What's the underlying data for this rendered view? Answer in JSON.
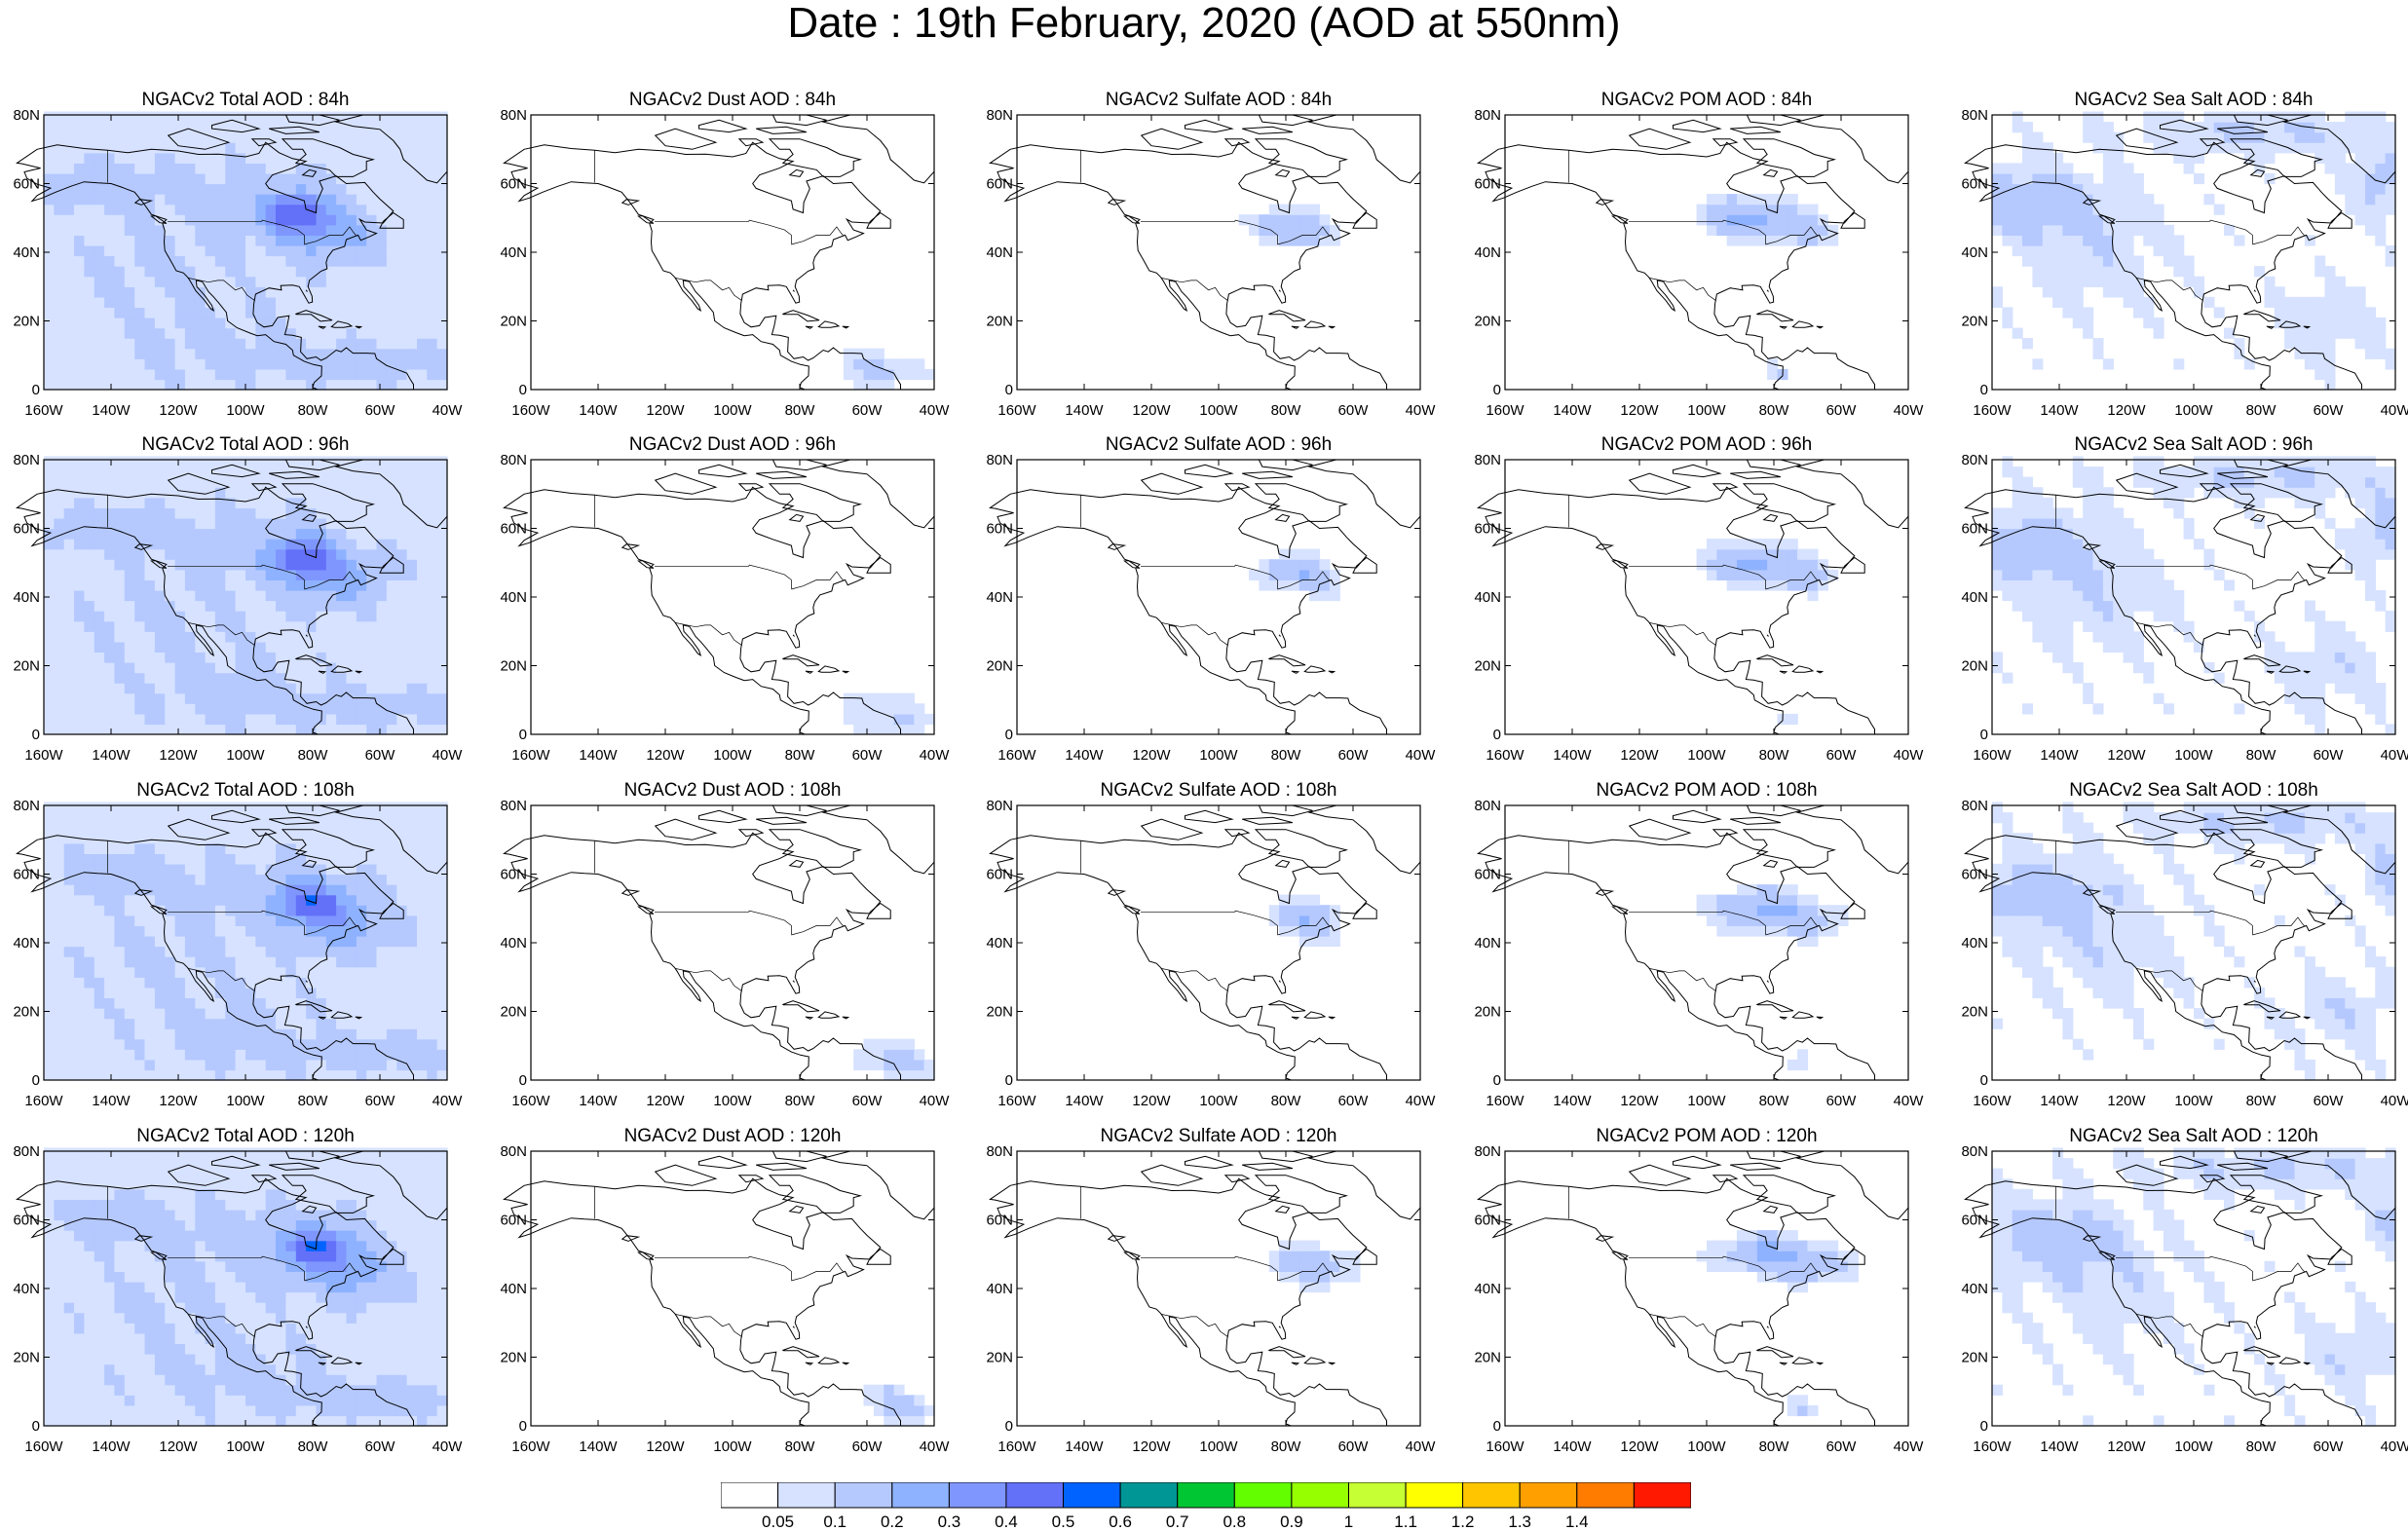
{
  "title": "Date : 19th February, 2020 (AOD at 550nm)",
  "rows": [
    {
      "panels": [
        {
          "title": "NGACv2 Total AOD : 84h",
          "species": "total"
        },
        {
          "title": "NGACv2 Dust AOD : 84h",
          "species": "dust"
        },
        {
          "title": "NGACv2 Sulfate AOD : 84h",
          "species": "sulfate"
        },
        {
          "title": "NGACv2 POM AOD : 84h",
          "species": "pom"
        },
        {
          "title": "NGACv2 Sea Salt AOD : 84h",
          "species": "seasalt"
        }
      ]
    },
    {
      "panels": [
        {
          "title": "NGACv2 Total AOD : 96h",
          "species": "total"
        },
        {
          "title": "NGACv2 Dust AOD : 96h",
          "species": "dust"
        },
        {
          "title": "NGACv2 Sulfate AOD : 96h",
          "species": "sulfate"
        },
        {
          "title": "NGACv2 POM AOD : 96h",
          "species": "pom"
        },
        {
          "title": "NGACv2 Sea Salt AOD : 96h",
          "species": "seasalt"
        }
      ]
    },
    {
      "panels": [
        {
          "title": "NGACv2 Total AOD : 108h",
          "species": "total"
        },
        {
          "title": "NGACv2 Dust AOD : 108h",
          "species": "dust"
        },
        {
          "title": "NGACv2 Sulfate AOD : 108h",
          "species": "sulfate"
        },
        {
          "title": "NGACv2 POM AOD : 108h",
          "species": "pom"
        },
        {
          "title": "NGACv2 Sea Salt AOD : 108h",
          "species": "seasalt"
        }
      ]
    },
    {
      "panels": [
        {
          "title": "NGACv2 Total AOD : 120h",
          "species": "total"
        },
        {
          "title": "NGACv2 Dust AOD : 120h",
          "species": "dust"
        },
        {
          "title": "NGACv2 Sulfate AOD : 120h",
          "species": "sulfate"
        },
        {
          "title": "NGACv2 POM AOD : 120h",
          "species": "pom"
        },
        {
          "title": "NGACv2 Sea Salt  AOD : 120h",
          "species": "seasalt"
        }
      ]
    }
  ],
  "lat_labels": [
    "0",
    "20N",
    "40N",
    "60N",
    "80N"
  ],
  "lon_labels": [
    "160W",
    "140W",
    "120W",
    "100W",
    "80W",
    "60W",
    "40W"
  ],
  "colorbar": {
    "colors": [
      "#ffffff",
      "#d6e2ff",
      "#b5c9ff",
      "#8eb2ff",
      "#7f96ff",
      "#6370f8",
      "#0063ff",
      "#009696",
      "#00c633",
      "#63ff00",
      "#96ff00",
      "#c6ff33",
      "#ffff00",
      "#ffc600",
      "#ffa000",
      "#ff7c00",
      "#ff1900"
    ],
    "labels": [
      "0.05",
      "0.1",
      "0.2",
      "0.3",
      "0.4",
      "0.5",
      "0.6",
      "0.7",
      "0.8",
      "0.9",
      "1",
      "1.1",
      "1.2",
      "1.3",
      "1.4"
    ]
  }
}
